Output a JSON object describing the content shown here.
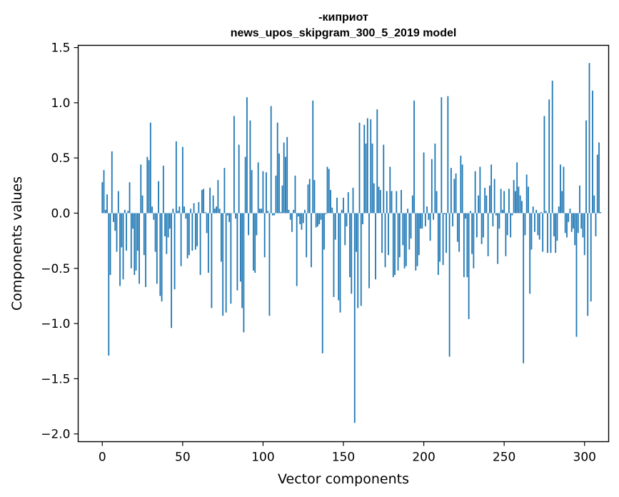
{
  "chart_data": {
    "type": "bar",
    "title_lines": [
      "-киприот",
      "news_upos_skipgram_300_5_2019 model"
    ],
    "xlabel": "Vector components",
    "ylabel": "Components values",
    "xlim": [
      -15,
      315
    ],
    "ylim": [
      -2.07,
      1.52
    ],
    "xticks": [
      0,
      50,
      100,
      150,
      200,
      250,
      300
    ],
    "xtick_labels": [
      "0",
      "50",
      "100",
      "150",
      "200",
      "250",
      "300"
    ],
    "yticks": [
      1.5,
      1.0,
      0.5,
      0.0,
      -0.5,
      -1.0,
      -1.5,
      -2.0
    ],
    "ytick_labels": [
      "1.5",
      "1.0",
      "0.5",
      "0.0",
      "−0.5",
      "−1.0",
      "−1.5",
      "−2.0"
    ],
    "grid": false,
    "bar_color": "#1f77b4",
    "values": [
      0.28,
      0.39,
      0.03,
      0.17,
      -1.29,
      -0.56,
      0.56,
      -0.08,
      -0.16,
      -0.35,
      0.2,
      -0.66,
      -0.31,
      -0.6,
      0.03,
      -0.34,
      0.02,
      0.28,
      -0.5,
      -0.14,
      -0.56,
      -0.52,
      -0.34,
      -0.64,
      0.44,
      0.16,
      -0.38,
      -0.67,
      0.51,
      0.48,
      0.82,
      0.06,
      -0.06,
      -0.35,
      -0.64,
      0.29,
      -0.75,
      -0.8,
      0.43,
      -0.21,
      -0.37,
      -0.22,
      -0.14,
      -1.04,
      0.04,
      -0.69,
      0.65,
      0.02,
      0.06,
      -0.48,
      0.6,
      0.06,
      -0.05,
      -0.41,
      -0.38,
      0.04,
      -0.34,
      0.09,
      -0.33,
      -0.3,
      0.1,
      -0.56,
      0.21,
      0.22,
      0.01,
      -0.18,
      -0.54,
      0.23,
      -0.86,
      0.16,
      0.04,
      0.06,
      0.3,
      0.04,
      -0.44,
      -0.93,
      0.41,
      -0.9,
      -0.02,
      -0.08,
      -0.82,
      0.0,
      0.88,
      -0.05,
      -0.7,
      0.62,
      -0.62,
      -0.86,
      -1.08,
      0.51,
      1.05,
      -0.2,
      0.84,
      0.39,
      -0.52,
      -0.54,
      -0.2,
      0.46,
      0.04,
      0.04,
      0.38,
      -0.4,
      0.37,
      0.02,
      -0.93,
      0.97,
      -0.02,
      -0.02,
      0.34,
      0.82,
      0.54,
      0.01,
      0.25,
      0.64,
      0.51,
      0.69,
      0.03,
      -0.06,
      -0.17,
      0.03,
      0.34,
      -0.66,
      -0.03,
      -0.1,
      -0.15,
      -0.09,
      0.03,
      -0.4,
      0.26,
      0.31,
      -0.49,
      1.02,
      0.3,
      -0.13,
      -0.12,
      -0.1,
      -0.06,
      -1.27,
      -0.33,
      -0.01,
      0.42,
      0.4,
      0.21,
      0.05,
      -0.76,
      -0.24,
      0.14,
      -0.79,
      -0.9,
      0.03,
      0.14,
      -0.29,
      -0.12,
      0.19,
      -0.58,
      -0.73,
      0.23,
      -1.9,
      -0.35,
      -0.86,
      0.82,
      -0.84,
      -0.1,
      0.8,
      0.63,
      0.86,
      -0.68,
      0.85,
      0.63,
      0.27,
      -0.6,
      0.94,
      0.24,
      0.21,
      -0.36,
      0.62,
      -0.49,
      0.2,
      -0.38,
      0.42,
      0.2,
      -0.58,
      -0.56,
      0.2,
      -0.52,
      -0.4,
      0.21,
      -0.29,
      -0.5,
      -0.48,
      0.04,
      -0.33,
      -0.23,
      0.16,
      1.02,
      -0.52,
      -0.48,
      -0.38,
      -0.14,
      -0.14,
      0.55,
      -0.12,
      0.06,
      -0.06,
      -0.25,
      0.49,
      -0.06,
      0.63,
      0.2,
      -0.56,
      -0.44,
      1.05,
      -0.47,
      -0.01,
      -0.36,
      1.06,
      -1.3,
      0.41,
      -0.12,
      0.31,
      0.36,
      -0.26,
      -0.35,
      0.52,
      0.44,
      -0.58,
      -0.05,
      -0.58,
      -0.96,
      0.02,
      -0.37,
      -0.5,
      0.38,
      -0.22,
      0.16,
      0.42,
      -0.28,
      -0.22,
      0.23,
      0.16,
      -0.39,
      0.25,
      0.44,
      -0.12,
      0.31,
      -0.02,
      -0.46,
      -0.14,
      0.22,
      0.03,
      0.2,
      -0.39,
      -0.2,
      0.22,
      -0.22,
      -0.02,
      0.3,
      0.2,
      0.46,
      0.24,
      0.16,
      0.11,
      -1.36,
      -0.2,
      0.35,
      0.24,
      -0.73,
      -0.33,
      0.06,
      -0.17,
      0.03,
      -0.2,
      -0.24,
      0.01,
      -0.35,
      0.88,
      0.02,
      -0.36,
      1.03,
      -0.36,
      1.2,
      -0.21,
      -0.36,
      -0.25,
      0.06,
      0.44,
      0.2,
      0.42,
      -0.18,
      -0.22,
      -0.08,
      0.04,
      -0.17,
      -0.14,
      -0.29,
      -1.12,
      -0.18,
      0.25,
      -0.14,
      -0.22,
      -0.38,
      0.84,
      -0.93,
      1.36,
      -0.8,
      1.11,
      0.16,
      -0.21,
      0.53,
      0.64,
      0.01
    ]
  }
}
